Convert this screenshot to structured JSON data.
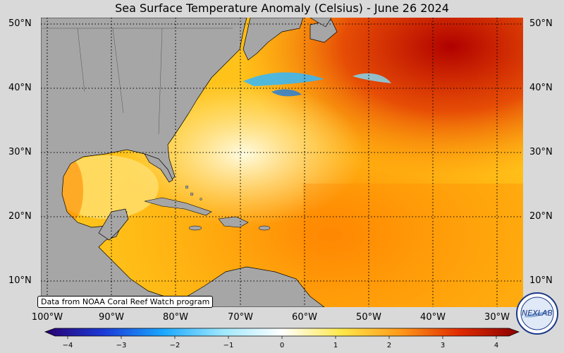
{
  "title": "Sea Surface Temperature Anomaly (Celsius) - June 26 2024",
  "credit": "Data from NOAA Coral Reef Watch program",
  "logo_text": "NEXLAB",
  "lat_labels": [
    "50°N",
    "40°N",
    "30°N",
    "20°N",
    "10°N"
  ],
  "lon_labels": [
    "100°W",
    "90°W",
    "80°W",
    "70°W",
    "60°W",
    "50°W",
    "40°W",
    "30°W"
  ],
  "colorbar": {
    "ticks": [
      "−4",
      "−3",
      "−2",
      "−1",
      "0",
      "1",
      "2",
      "3",
      "4"
    ],
    "colors": [
      "#2a0070",
      "#1a3bd8",
      "#1aa8ff",
      "#9fe8ff",
      "#ffffff",
      "#ffe84a",
      "#ff9a1a",
      "#e02a00",
      "#8a0000"
    ]
  },
  "colors": {
    "land": "#a6a6a6",
    "background": "#d9d9d9"
  }
}
